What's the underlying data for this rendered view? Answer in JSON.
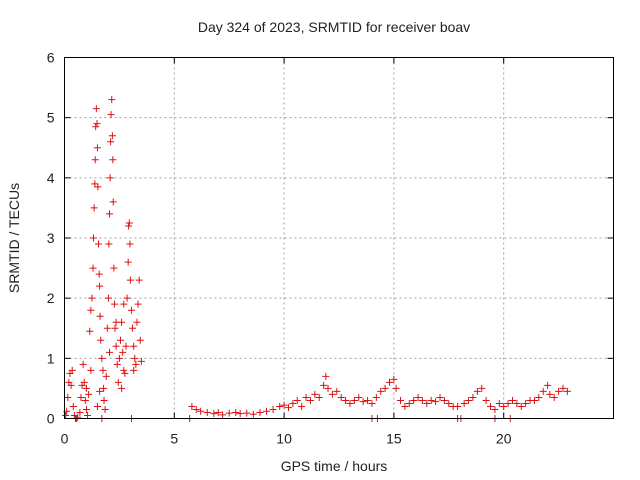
{
  "chart_data": {
    "type": "scatter",
    "title": "Day 324 of 2023, SRMTID for receiver boav",
    "xlabel": "GPS time / hours",
    "ylabel": "SRMTID / TECUs",
    "xlim": [
      0,
      25
    ],
    "ylim": [
      0,
      6
    ],
    "xticks": [
      0,
      5,
      10,
      15,
      20
    ],
    "yticks": [
      0,
      1,
      2,
      3,
      4,
      5,
      6
    ],
    "grid": true,
    "marker": "+",
    "color": "#dd1111",
    "series": [
      {
        "name": "SRMTID",
        "points": [
          [
            0.05,
            0.05
          ],
          [
            0.1,
            0.12
          ],
          [
            0.15,
            0.35
          ],
          [
            0.2,
            0.6
          ],
          [
            0.25,
            0.75
          ],
          [
            0.3,
            0.55
          ],
          [
            0.35,
            0.8
          ],
          [
            0.4,
            0.2
          ],
          [
            0.45,
            0.05
          ],
          [
            0.5,
            0.0
          ],
          [
            0.6,
            0.02
          ],
          [
            0.7,
            0.1
          ],
          [
            0.75,
            0.35
          ],
          [
            0.8,
            0.55
          ],
          [
            0.85,
            0.9
          ],
          [
            0.9,
            0.6
          ],
          [
            0.95,
            0.3
          ],
          [
            1.0,
            0.15
          ],
          [
            1.05,
            0.05
          ],
          [
            1.1,
            0.4
          ],
          [
            1.15,
            1.45
          ],
          [
            1.2,
            1.8
          ],
          [
            1.25,
            2.0
          ],
          [
            1.3,
            2.5
          ],
          [
            1.32,
            3.0
          ],
          [
            1.35,
            3.5
          ],
          [
            1.38,
            3.9
          ],
          [
            1.4,
            4.3
          ],
          [
            1.42,
            4.85
          ],
          [
            1.45,
            5.15
          ],
          [
            1.48,
            4.9
          ],
          [
            1.5,
            4.5
          ],
          [
            1.52,
            3.85
          ],
          [
            1.55,
            2.9
          ],
          [
            1.58,
            2.4
          ],
          [
            1.6,
            2.2
          ],
          [
            1.62,
            1.7
          ],
          [
            1.65,
            1.3
          ],
          [
            1.7,
            1.0
          ],
          [
            1.75,
            0.8
          ],
          [
            1.78,
            0.5
          ],
          [
            1.8,
            0.3
          ],
          [
            1.85,
            0.15
          ],
          [
            1.9,
            0.7
          ],
          [
            1.95,
            1.5
          ],
          [
            2.0,
            2.0
          ],
          [
            2.02,
            2.9
          ],
          [
            2.05,
            3.4
          ],
          [
            2.08,
            4.0
          ],
          [
            2.1,
            4.6
          ],
          [
            2.12,
            5.05
          ],
          [
            2.15,
            5.3
          ],
          [
            2.18,
            4.7
          ],
          [
            2.2,
            4.3
          ],
          [
            2.22,
            3.6
          ],
          [
            2.25,
            2.5
          ],
          [
            2.28,
            1.9
          ],
          [
            2.3,
            1.5
          ],
          [
            2.35,
            1.2
          ],
          [
            2.4,
            0.9
          ],
          [
            2.45,
            0.6
          ],
          [
            2.5,
            1.0
          ],
          [
            2.55,
            1.3
          ],
          [
            2.6,
            1.6
          ],
          [
            2.65,
            1.1
          ],
          [
            2.7,
            0.8
          ],
          [
            2.75,
            0.75
          ],
          [
            2.8,
            1.2
          ],
          [
            2.85,
            2.0
          ],
          [
            2.9,
            2.6
          ],
          [
            2.92,
            3.2
          ],
          [
            2.95,
            3.25
          ],
          [
            2.98,
            2.9
          ],
          [
            3.0,
            2.3
          ],
          [
            3.05,
            1.8
          ],
          [
            3.1,
            1.5
          ],
          [
            3.15,
            1.2
          ],
          [
            3.2,
            1.0
          ],
          [
            3.25,
            0.9
          ],
          [
            3.3,
            1.6
          ],
          [
            3.35,
            1.9
          ],
          [
            3.4,
            2.3
          ],
          [
            3.45,
            1.3
          ],
          [
            3.5,
            0.95
          ],
          [
            2.6,
            0.5
          ],
          [
            2.7,
            1.9
          ],
          [
            1.6,
            0.45
          ],
          [
            1.5,
            0.2
          ],
          [
            1.0,
            0.5
          ],
          [
            1.2,
            0.8
          ],
          [
            2.05,
            1.1
          ],
          [
            2.35,
            1.6
          ],
          [
            3.15,
            0.8
          ],
          [
            0.55,
            0.0
          ],
          [
            1.7,
            0.0
          ],
          [
            3.05,
            0.0
          ],
          [
            5.8,
            0.2
          ],
          [
            6.0,
            0.15
          ],
          [
            6.2,
            0.12
          ],
          [
            6.5,
            0.1
          ],
          [
            6.8,
            0.08
          ],
          [
            7.0,
            0.1
          ],
          [
            7.2,
            0.06
          ],
          [
            7.5,
            0.09
          ],
          [
            7.8,
            0.1
          ],
          [
            8.0,
            0.08
          ],
          [
            8.3,
            0.09
          ],
          [
            8.6,
            0.07
          ],
          [
            8.9,
            0.1
          ],
          [
            9.2,
            0.12
          ],
          [
            9.5,
            0.15
          ],
          [
            9.8,
            0.2
          ],
          [
            10.0,
            0.22
          ],
          [
            10.2,
            0.18
          ],
          [
            10.4,
            0.25
          ],
          [
            10.6,
            0.3
          ],
          [
            10.8,
            0.2
          ],
          [
            11.0,
            0.35
          ],
          [
            11.2,
            0.3
          ],
          [
            11.4,
            0.4
          ],
          [
            11.6,
            0.35
          ],
          [
            11.8,
            0.55
          ],
          [
            11.9,
            0.7
          ],
          [
            12.0,
            0.5
          ],
          [
            12.2,
            0.4
          ],
          [
            12.4,
            0.45
          ],
          [
            12.6,
            0.35
          ],
          [
            12.8,
            0.3
          ],
          [
            13.0,
            0.25
          ],
          [
            13.2,
            0.3
          ],
          [
            13.4,
            0.35
          ],
          [
            13.6,
            0.28
          ],
          [
            13.8,
            0.3
          ],
          [
            14.0,
            0.25
          ],
          [
            14.2,
            0.35
          ],
          [
            14.4,
            0.45
          ],
          [
            14.6,
            0.5
          ],
          [
            14.8,
            0.6
          ],
          [
            15.0,
            0.65
          ],
          [
            15.1,
            0.5
          ],
          [
            15.3,
            0.3
          ],
          [
            15.5,
            0.2
          ],
          [
            15.7,
            0.25
          ],
          [
            15.9,
            0.3
          ],
          [
            16.1,
            0.35
          ],
          [
            16.3,
            0.3
          ],
          [
            16.5,
            0.25
          ],
          [
            16.7,
            0.3
          ],
          [
            16.9,
            0.28
          ],
          [
            17.1,
            0.35
          ],
          [
            17.3,
            0.3
          ],
          [
            17.5,
            0.25
          ],
          [
            17.7,
            0.2
          ],
          [
            17.9,
            0.2
          ],
          [
            18.2,
            0.25
          ],
          [
            18.4,
            0.3
          ],
          [
            18.6,
            0.35
          ],
          [
            18.8,
            0.45
          ],
          [
            19.0,
            0.5
          ],
          [
            19.2,
            0.3
          ],
          [
            19.4,
            0.2
          ],
          [
            19.6,
            0.15
          ],
          [
            19.8,
            0.25
          ],
          [
            20.0,
            0.2
          ],
          [
            20.2,
            0.25
          ],
          [
            20.4,
            0.3
          ],
          [
            20.6,
            0.25
          ],
          [
            20.8,
            0.2
          ],
          [
            21.0,
            0.25
          ],
          [
            21.2,
            0.3
          ],
          [
            21.4,
            0.3
          ],
          [
            21.6,
            0.35
          ],
          [
            21.8,
            0.45
          ],
          [
            22.0,
            0.55
          ],
          [
            22.1,
            0.4
          ],
          [
            22.3,
            0.35
          ],
          [
            22.5,
            0.45
          ],
          [
            22.7,
            0.5
          ],
          [
            22.9,
            0.45
          ],
          [
            5.7,
            0.0
          ],
          [
            14.0,
            0.0
          ],
          [
            14.25,
            0.0
          ],
          [
            17.9,
            0.0
          ],
          [
            18.05,
            0.0
          ],
          [
            19.6,
            0.0
          ],
          [
            20.3,
            0.0
          ]
        ]
      }
    ]
  }
}
